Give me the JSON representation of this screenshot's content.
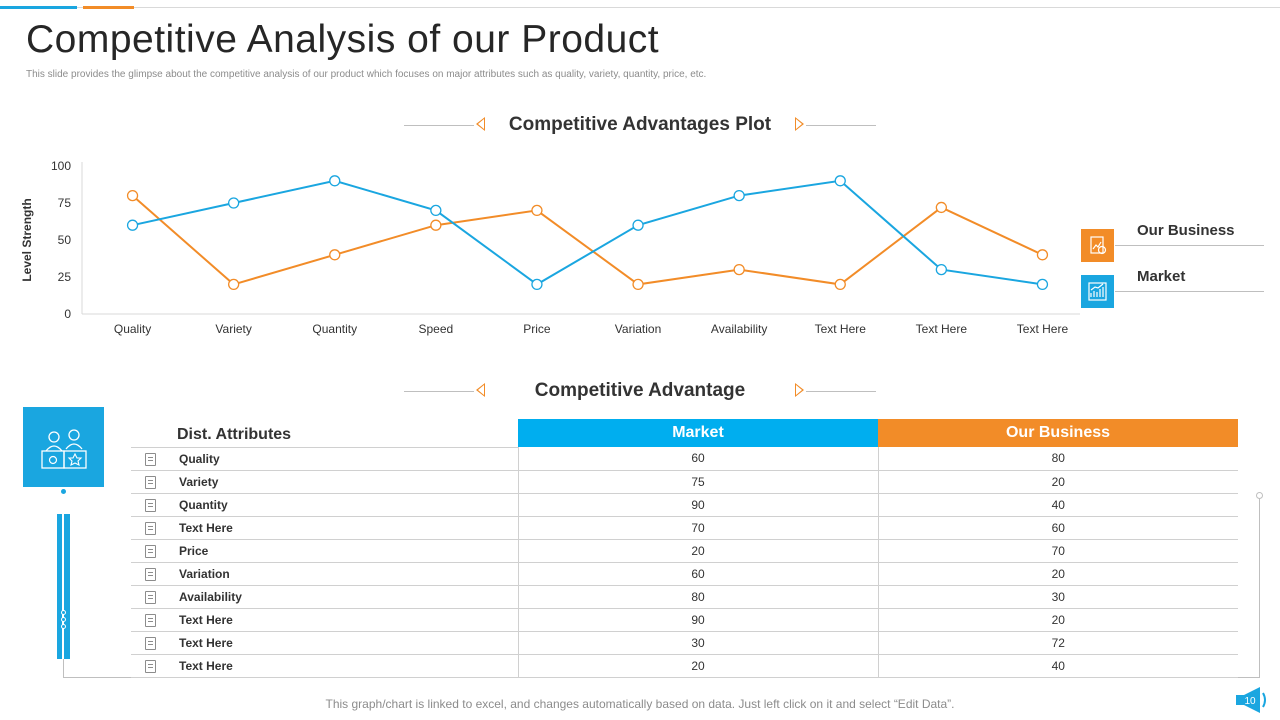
{
  "page": {
    "title": "Competitive Analysis of our Product",
    "subtitle": "This slide provides the glimpse about the competitive analysis of our product which focuses on major attributes such as quality, variety, quantity, price, etc.",
    "footer": "This graph/chart is linked to excel, and changes automatically based on data. Just left click on it and select “Edit Data”.",
    "page_number": "10"
  },
  "colors": {
    "blue": "#1aa6e0",
    "orange": "#f28c28"
  },
  "sections": {
    "plot_title": "Competitive Advantages Plot",
    "table_title": "Competitive Advantage"
  },
  "legend": {
    "our_business": "Our Business",
    "market": "Market"
  },
  "chart_data": {
    "type": "line",
    "title": "Competitive Advantages Plot",
    "ylabel": "Level Strength",
    "xlabel": "",
    "ylim": [
      0,
      100
    ],
    "yticks": [
      0,
      25,
      50,
      75,
      100
    ],
    "categories": [
      "Quality",
      "Variety",
      "Quantity",
      "Speed",
      "Price",
      "Variation",
      "Availability",
      "Text Here",
      "Text Here",
      "Text Here"
    ],
    "series": [
      {
        "name": "Our Business",
        "color": "#f28c28",
        "values": [
          80,
          20,
          40,
          60,
          70,
          20,
          30,
          20,
          72,
          40
        ]
      },
      {
        "name": "Market",
        "color": "#1aa6e0",
        "values": [
          60,
          75,
          90,
          70,
          20,
          60,
          80,
          90,
          30,
          20
        ]
      }
    ],
    "legend": "right"
  },
  "table": {
    "headers": {
      "attr": "Dist. Attributes",
      "market": "Market",
      "business": "Our Business"
    },
    "rows": [
      {
        "name": "Quality",
        "market": "60",
        "business": "80"
      },
      {
        "name": "Variety",
        "market": "75",
        "business": "20"
      },
      {
        "name": "Quantity",
        "market": "90",
        "business": "40"
      },
      {
        "name": "Text Here",
        "market": "70",
        "business": "60"
      },
      {
        "name": "Price",
        "market": "20",
        "business": "70"
      },
      {
        "name": "Variation",
        "market": "60",
        "business": "20"
      },
      {
        "name": "Availability",
        "market": "80",
        "business": "30"
      },
      {
        "name": "Text Here",
        "market": "90",
        "business": "20"
      },
      {
        "name": "Text Here",
        "market": "30",
        "business": "72"
      },
      {
        "name": "Text Here",
        "market": "20",
        "business": "40"
      }
    ]
  }
}
